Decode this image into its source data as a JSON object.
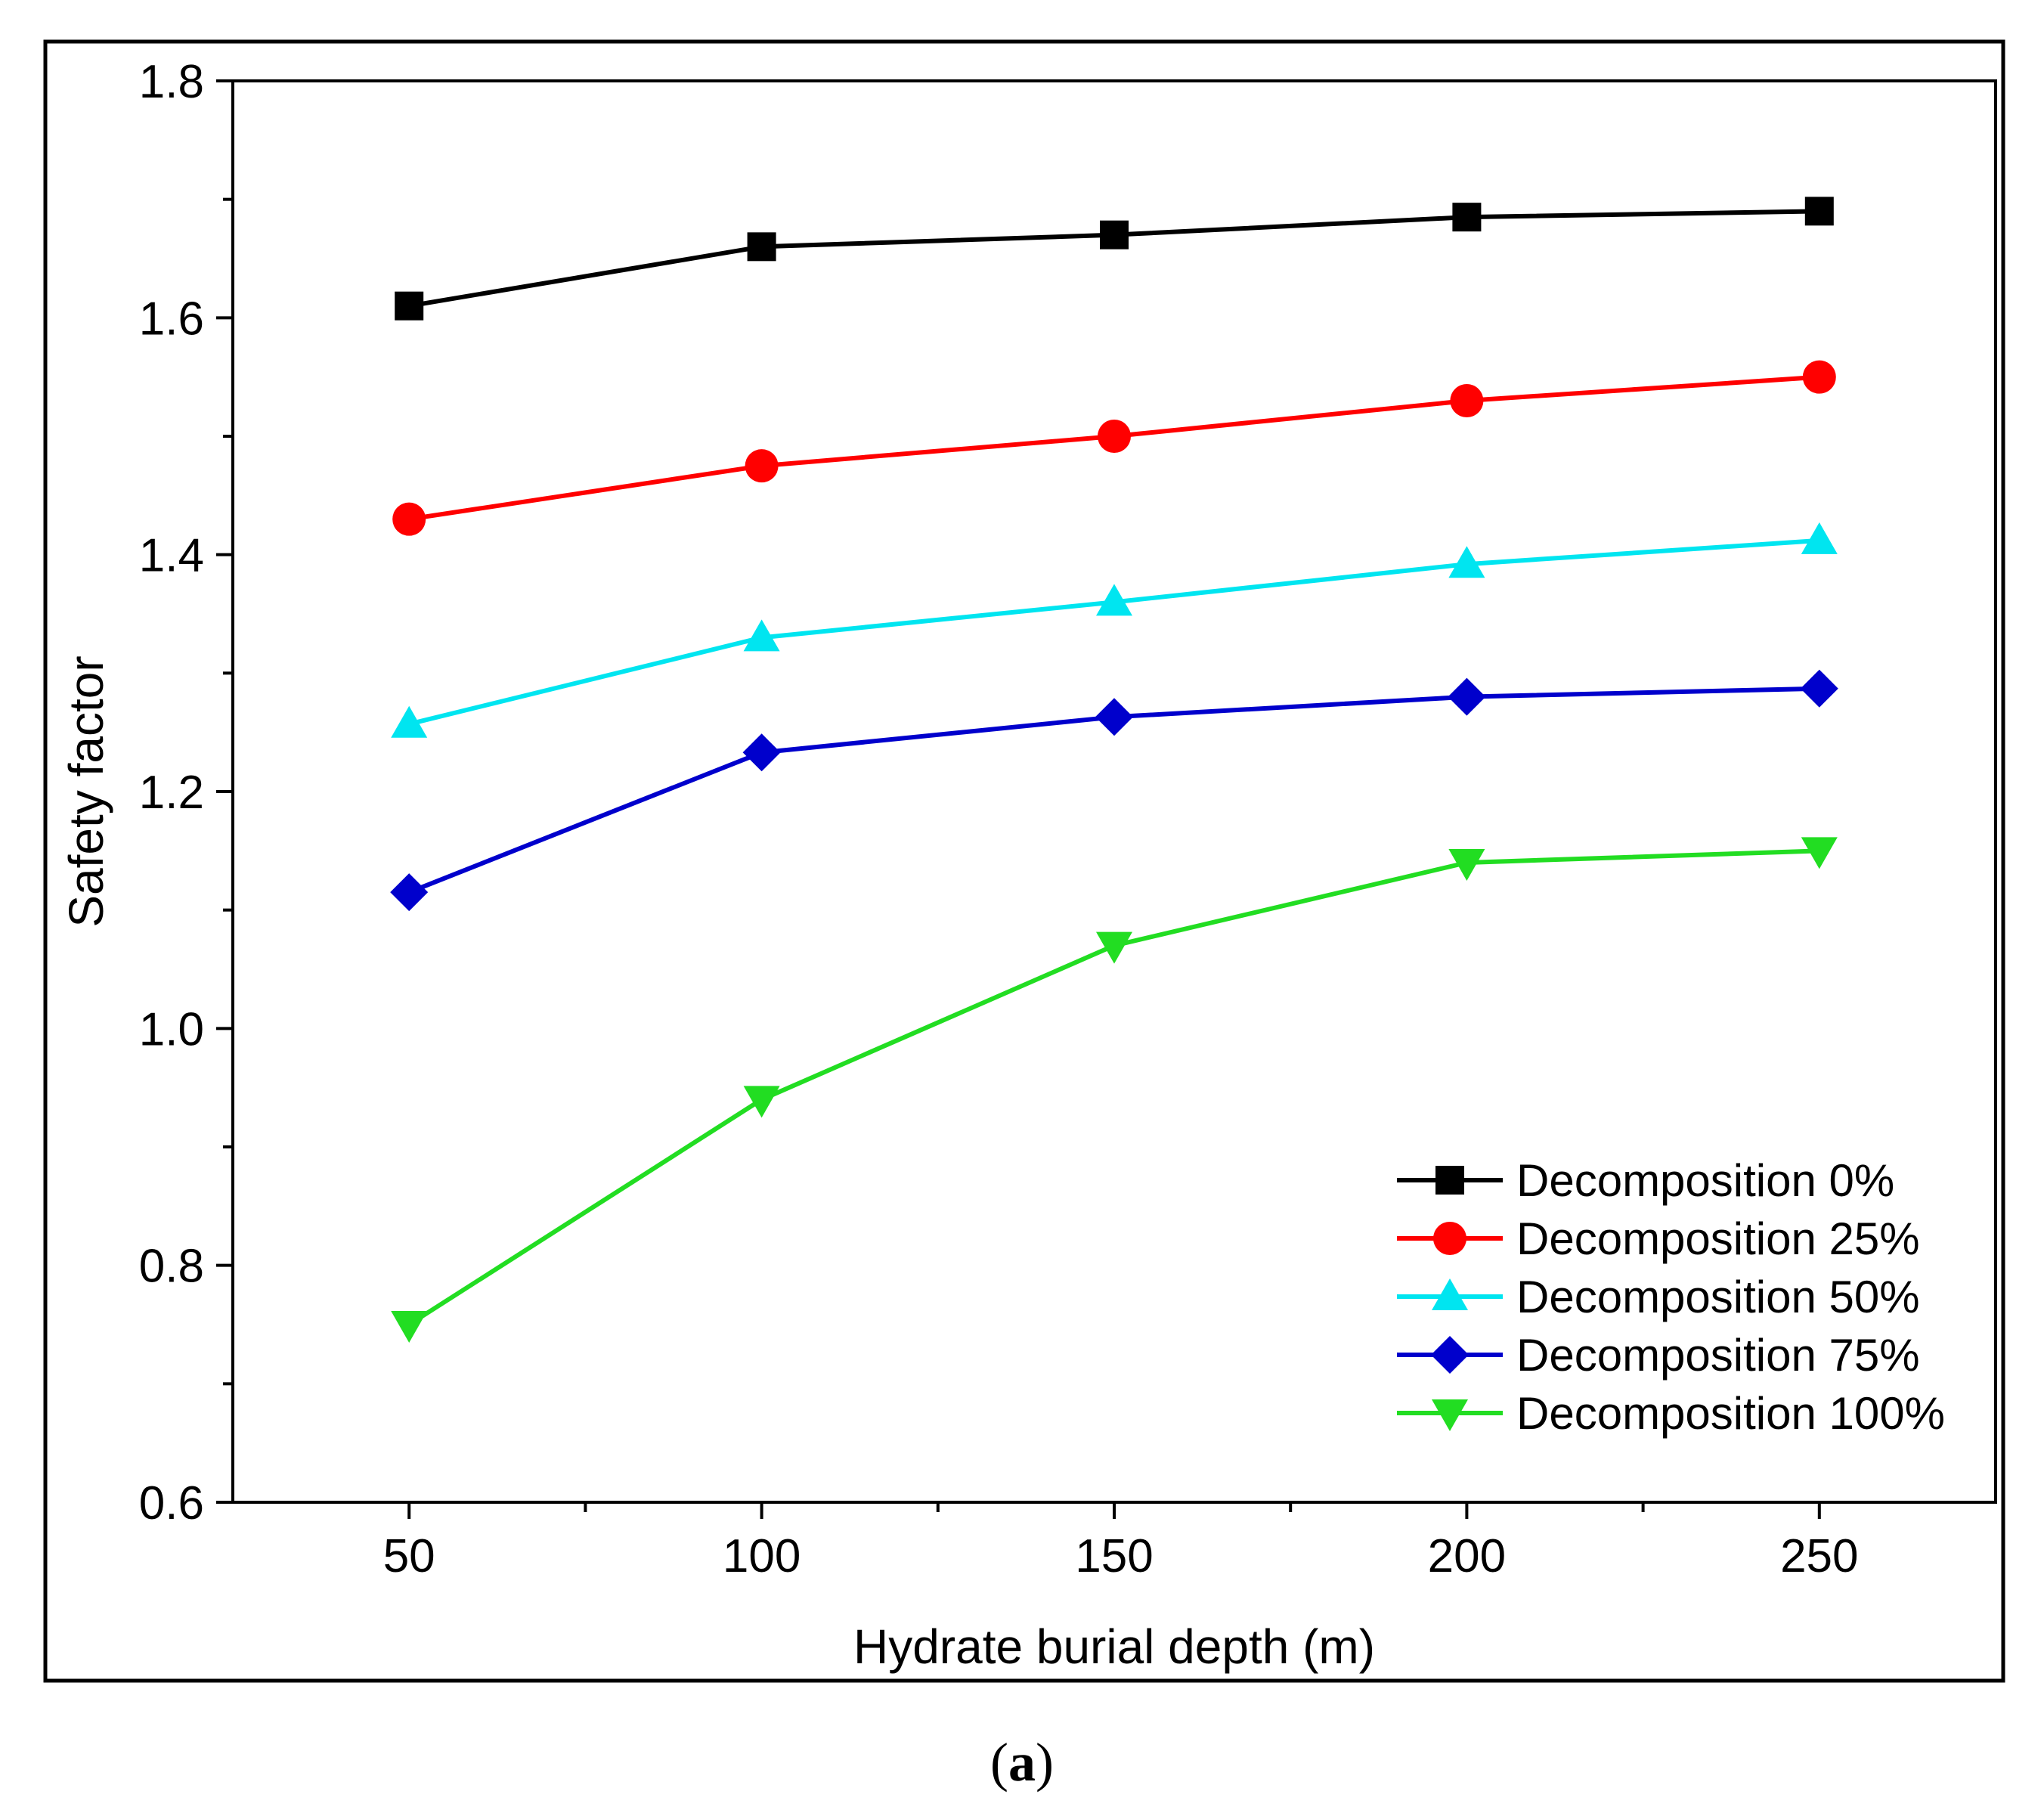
{
  "chart_data": {
    "type": "line",
    "title": "",
    "xlabel": "Hydrate burial depth (m)",
    "ylabel": "Safety factor",
    "xlim": [
      25,
      275
    ],
    "ylim": [
      0.6,
      1.8
    ],
    "x": [
      50,
      100,
      150,
      200,
      250
    ],
    "x_tick_labels": [
      "50",
      "100",
      "150",
      "200",
      "250"
    ],
    "y_ticks": [
      0.6,
      0.8,
      1.0,
      1.2,
      1.4,
      1.6,
      1.8
    ],
    "y_tick_labels": [
      "0.6",
      "0.8",
      "1.0",
      "1.2",
      "1.4",
      "1.6",
      "1.8"
    ],
    "grid": false,
    "legend_position": "bottom-right",
    "series": [
      {
        "name": "Decomposition 0%",
        "values": [
          1.61,
          1.66,
          1.67,
          1.685,
          1.69
        ],
        "color": "#000000",
        "marker": "square"
      },
      {
        "name": "Decomposition 25%",
        "values": [
          1.43,
          1.475,
          1.5,
          1.53,
          1.55
        ],
        "color": "#ff0000",
        "marker": "circle"
      },
      {
        "name": "Decomposition 50%",
        "values": [
          1.257,
          1.33,
          1.36,
          1.392,
          1.412
        ],
        "color": "#00e5f0",
        "marker": "triangle-up"
      },
      {
        "name": "Decomposition 75%",
        "values": [
          1.115,
          1.233,
          1.263,
          1.28,
          1.287
        ],
        "color": "#0000cc",
        "marker": "diamond"
      },
      {
        "name": "Decomposition 100%",
        "values": [
          0.75,
          0.94,
          1.07,
          1.14,
          1.15
        ],
        "color": "#22dd22",
        "marker": "triangle-down"
      }
    ]
  },
  "caption": {
    "open": "(",
    "letter": "a",
    "close": ")"
  }
}
